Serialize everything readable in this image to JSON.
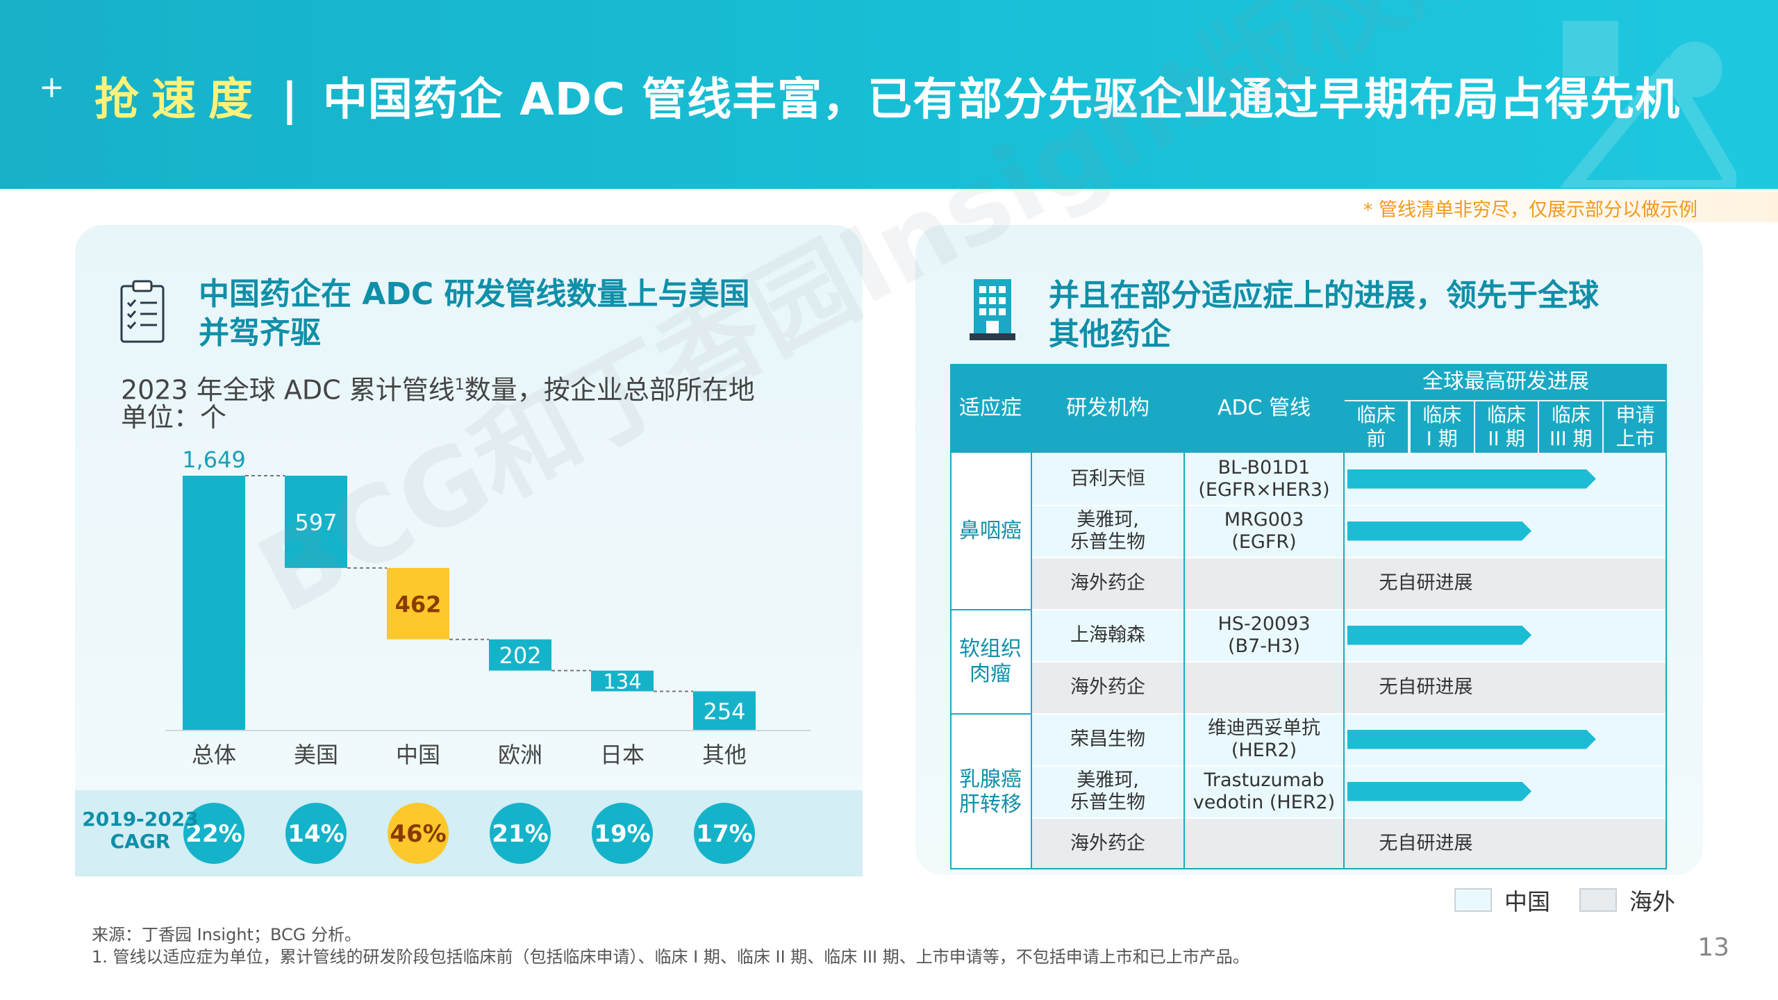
{
  "header": {
    "keyword": "抢速度",
    "separator": "|",
    "title": "中国药企 ADC 管线丰富，已有部分先驱企业通过早期布局占得先机"
  },
  "note": "* 管线清单非穷尽，仅展示部分以做示例",
  "left": {
    "title_line1": "中国药企在 ADC 研发管线数量上与美国",
    "title_line2": "并驾齐驱",
    "subtitle_a": "2023 年全球 ADC 累计管线",
    "subtitle_sup": "1",
    "subtitle_b": "数量，按企业总部所在地",
    "unit": "单位：个",
    "cagr_label_1": "2019-2023",
    "cagr_label_2": "CAGR"
  },
  "chart_data": {
    "type": "bar",
    "subtype": "waterfall",
    "categories": [
      "总体",
      "美国",
      "中国",
      "欧洲",
      "日本",
      "其他"
    ],
    "values": [
      1649,
      597,
      462,
      202,
      134,
      254
    ],
    "value_labels": [
      "1,649",
      "597",
      "462",
      "202",
      "134",
      "254"
    ],
    "highlight": "中国",
    "cagr": [
      "22%",
      "14%",
      "46%",
      "21%",
      "19%",
      "17%"
    ],
    "colors": {
      "bar": "#15b3ca",
      "highlight": "#fcc82b",
      "highlight_text": "#8a3b00"
    }
  },
  "right": {
    "title_line1": "并且在部分适应症上的进展，领先于全球",
    "title_line2": "其他药企",
    "headers": {
      "indication": "适应症",
      "org": "研发机构",
      "adc": "ADC 管线",
      "progress": "全球最高研发进展",
      "stages": [
        {
          "l1": "临床",
          "l2": "前"
        },
        {
          "l1": "临床",
          "l2": "I 期"
        },
        {
          "l1": "临床",
          "l2": "II 期"
        },
        {
          "l1": "临床",
          "l2": "III 期"
        },
        {
          "l1": "申请",
          "l2": "上市"
        }
      ]
    },
    "groups": [
      {
        "indication_1": "鼻咽癌",
        "indication_2": ""
      },
      {
        "indication_1": "软组织",
        "indication_2": "肉瘤"
      },
      {
        "indication_1": "乳腺癌",
        "indication_2": "肝转移"
      }
    ],
    "rows": [
      {
        "org_1": "百利天恒",
        "org_2": "",
        "adc_1": "BL-B01D1",
        "adc_2": "(EGFR×HER3)",
        "stage_reached": 4,
        "region": "中国"
      },
      {
        "org_1": "美雅珂,",
        "org_2": "乐普生物",
        "adc_1": "MRG003",
        "adc_2": "(EGFR)",
        "stage_reached": 3,
        "region": "中国"
      },
      {
        "org_1": "海外药企",
        "org_2": "",
        "adc_1": "",
        "adc_2": "",
        "progress_text": "无自研进展",
        "region": "海外"
      },
      {
        "org_1": "上海翰森",
        "org_2": "",
        "adc_1": "HS-20093",
        "adc_2": "(B7-H3)",
        "stage_reached": 3,
        "region": "中国"
      },
      {
        "org_1": "海外药企",
        "org_2": "",
        "adc_1": "",
        "adc_2": "",
        "progress_text": "无自研进展",
        "region": "海外"
      },
      {
        "org_1": "荣昌生物",
        "org_2": "",
        "adc_1": "维迪西妥单抗",
        "adc_2": "(HER2)",
        "stage_reached": 4,
        "region": "中国"
      },
      {
        "org_1": "美雅珂,",
        "org_2": "乐普生物",
        "adc_1": "Trastuzumab",
        "adc_2": "vedotin (HER2)",
        "stage_reached": 3,
        "region": "中国"
      },
      {
        "org_1": "海外药企",
        "org_2": "",
        "adc_1": "",
        "adc_2": "",
        "progress_text": "无自研进展",
        "region": "海外"
      }
    ],
    "legend": [
      "中国",
      "海外"
    ],
    "colors": {
      "china_bg": "#eaf9fd",
      "overseas_bg": "#e8ecee",
      "header": "#1aa9c4"
    }
  },
  "footer": {
    "source": "来源：丁香园 Insight；BCG 分析。",
    "footnote": "1. 管线以适应症为单位，累计管线的研发阶段包括临床前（包括临床申请）、临床 I 期、临床 II 期、临床 III 期、上市申请等，不包括申请上市和已上市产品。"
  },
  "page_number": "13",
  "watermark": "BCG和丁香园Insight版权所有"
}
